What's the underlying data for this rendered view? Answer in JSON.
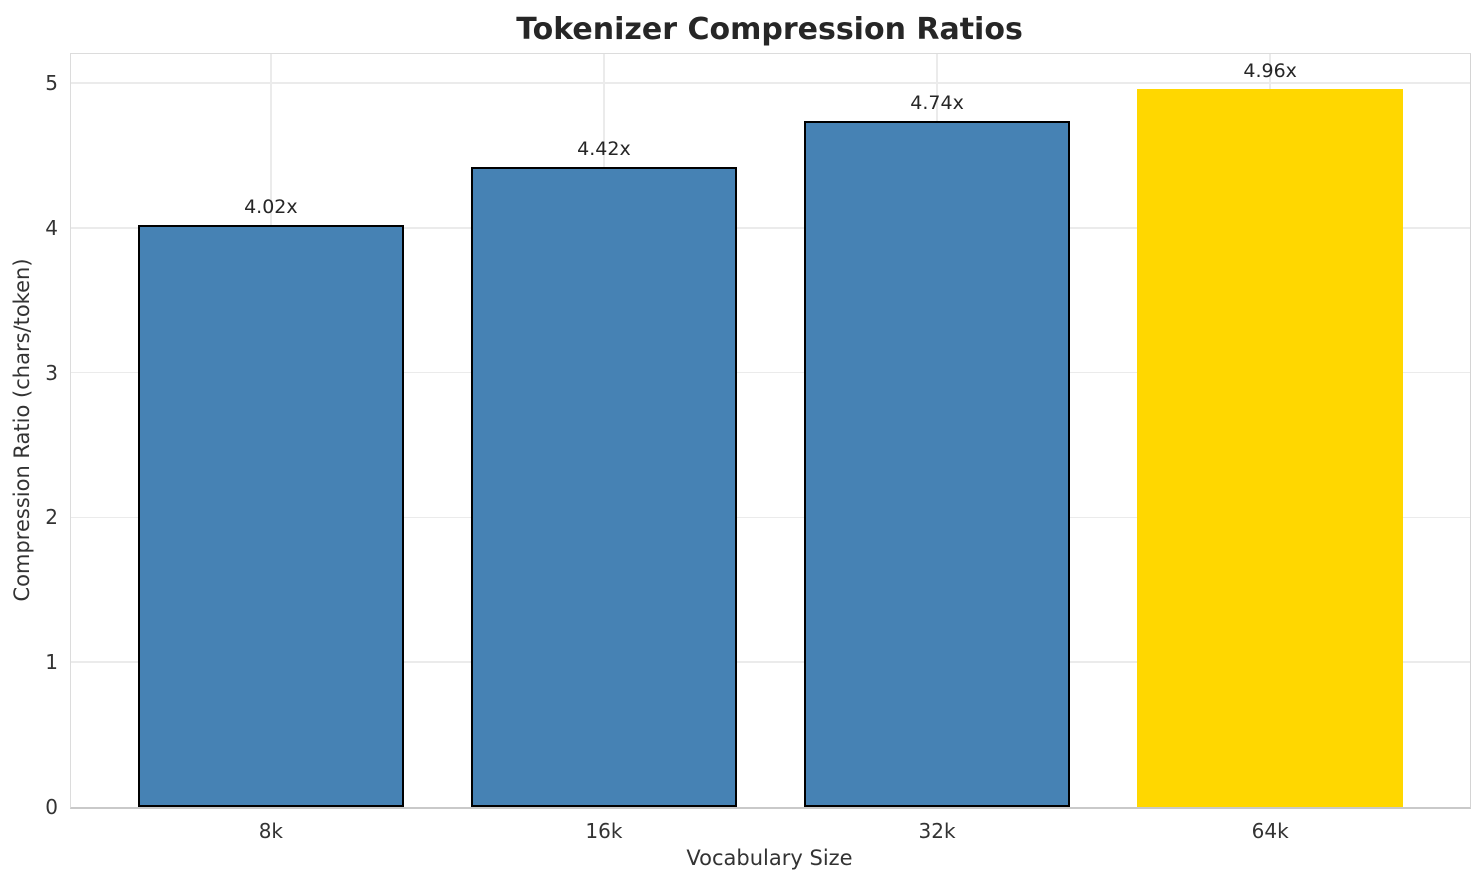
{
  "chart_data": {
    "type": "bar",
    "title": "Tokenizer Compression Ratios",
    "xlabel": "Vocabulary Size",
    "ylabel": "Compression Ratio (chars/token)",
    "categories": [
      "8k",
      "16k",
      "32k",
      "64k"
    ],
    "values": [
      4.02,
      4.42,
      4.74,
      4.96
    ],
    "bar_labels": [
      "4.02x",
      "4.42x",
      "4.74x",
      "4.96x"
    ],
    "yticks": [
      0,
      1,
      2,
      3,
      4,
      5
    ],
    "ylim": [
      0,
      5.2
    ],
    "xlim": [
      -0.6,
      3.6
    ],
    "bar_width": 0.8,
    "grid": true,
    "legend": "none",
    "colors": {
      "bar_default": "#4682B4",
      "bar_highlight": "#FFD700",
      "bar_edge": "#000000",
      "grid_line": "#ebebeb",
      "title_text": "#262626",
      "tick_text": "#333333"
    },
    "bar_colors": [
      "#4682B4",
      "#4682B4",
      "#4682B4",
      "#FFD700"
    ],
    "bar_edge_colors": [
      "#000000",
      "#000000",
      "#000000",
      "none"
    ]
  }
}
